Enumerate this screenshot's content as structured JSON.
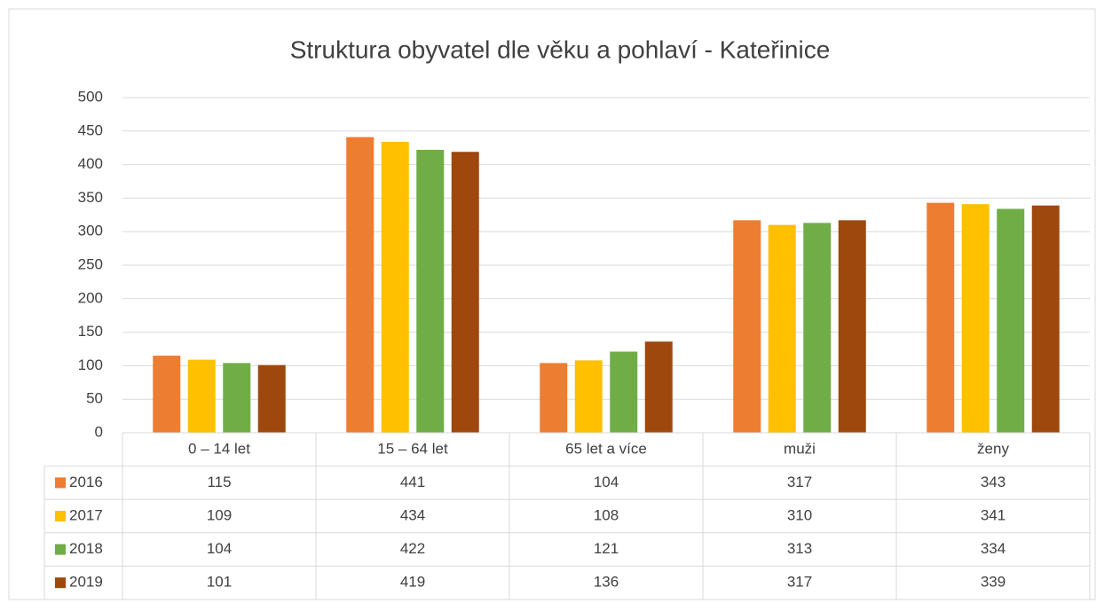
{
  "chart_data": {
    "type": "bar",
    "title": "Struktura obyvatel dle věku a pohlaví - Kateřinice",
    "categories": [
      "0 – 14 let",
      "15 – 64 let",
      "65 let a více",
      "muži",
      "ženy"
    ],
    "series": [
      {
        "name": "2016",
        "color": "#ed7d31",
        "values": [
          115,
          441,
          104,
          317,
          343
        ]
      },
      {
        "name": "2017",
        "color": "#ffc000",
        "values": [
          109,
          434,
          108,
          310,
          341
        ]
      },
      {
        "name": "2018",
        "color": "#70ad47",
        "values": [
          104,
          422,
          121,
          313,
          334
        ]
      },
      {
        "name": "2019",
        "color": "#9e480e",
        "values": [
          101,
          419,
          136,
          317,
          339
        ]
      }
    ],
    "ylim": [
      0,
      500
    ],
    "yticks": [
      0,
      50,
      100,
      150,
      200,
      250,
      300,
      350,
      400,
      450,
      500
    ],
    "grid": true,
    "data_table": true
  }
}
